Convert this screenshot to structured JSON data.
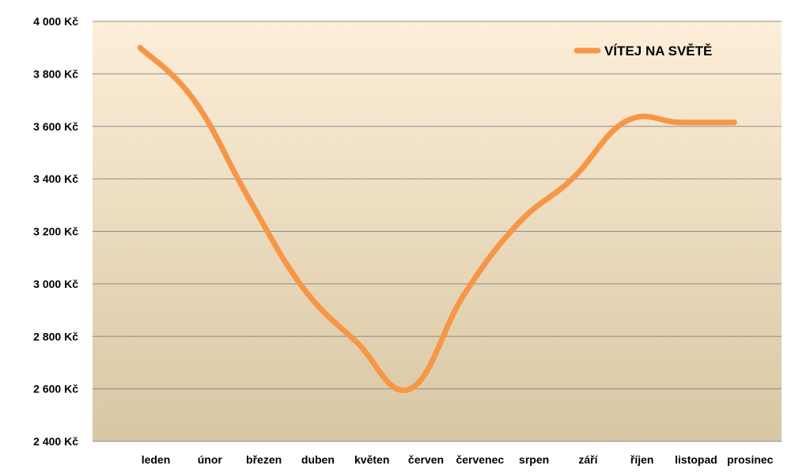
{
  "chart_data": {
    "type": "line",
    "title": "",
    "xlabel": "",
    "ylabel": "",
    "categories": [
      "leden",
      "únor",
      "březen",
      "duben",
      "květen",
      "červen",
      "červenec",
      "srpen",
      "září",
      "říjen",
      "listopad",
      "prosinec"
    ],
    "series": [
      {
        "name": "VÍTEJ NA SVĚTĚ",
        "values": [
          3900,
          3700,
          3330,
          2990,
          2780,
          2600,
          2960,
          3230,
          3400,
          3620,
          3615,
          3615
        ],
        "color": "#f79646"
      }
    ],
    "ylim": [
      2400,
      4000
    ],
    "yticks": [
      {
        "value": 4000,
        "label": "4 000 Kč"
      },
      {
        "value": 3800,
        "label": "3 800 Kč"
      },
      {
        "value": 3600,
        "label": "3 600 Kč"
      },
      {
        "value": 3400,
        "label": "3 400 Kč"
      },
      {
        "value": 3200,
        "label": "3 200 Kč"
      },
      {
        "value": 3000,
        "label": "3 000 Kč"
      },
      {
        "value": 2800,
        "label": "2 800 Kč"
      },
      {
        "value": 2600,
        "label": "2 600 Kč"
      },
      {
        "value": 2400,
        "label": "2 400 Kč"
      }
    ],
    "grid": true,
    "legend": "top-right",
    "smooth": true,
    "colors": {
      "plot_bg_top": "#fdeed8",
      "plot_bg_bottom": "#d8c7a3",
      "gridline": "#8c8c8c",
      "text": "#000000"
    }
  }
}
